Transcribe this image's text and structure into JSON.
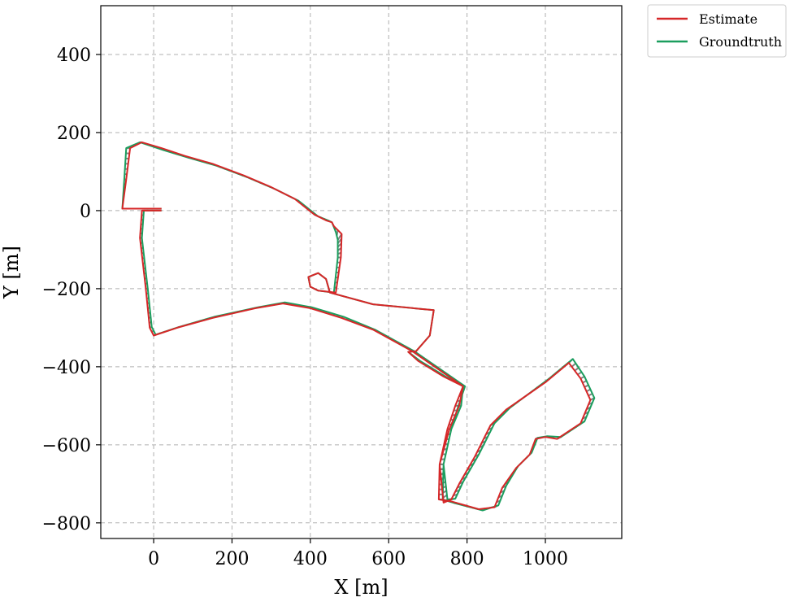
{
  "chart_data": {
    "type": "line",
    "title": "",
    "xlabel": "X [m]",
    "ylabel": "Y [m]",
    "xlim": [
      -135,
      1195
    ],
    "ylim": [
      -840,
      525
    ],
    "xticks": [
      0,
      200,
      400,
      600,
      800,
      1000
    ],
    "yticks": [
      400,
      200,
      0,
      -200,
      -400,
      -600,
      -800
    ],
    "xtick_labels": [
      "0",
      "200",
      "400",
      "600",
      "800",
      "1000"
    ],
    "ytick_labels": [
      "400",
      "200",
      "0",
      "−200",
      "−400",
      "−600",
      "−800"
    ],
    "grid": true,
    "legend_position": "outside-top-right",
    "error_color": "#808080",
    "series": [
      {
        "name": "Estimate",
        "color": "#d62728",
        "points": [
          [
            20,
            5
          ],
          [
            -55,
            5
          ],
          [
            -80,
            5
          ],
          [
            -70,
            80
          ],
          [
            -60,
            160
          ],
          [
            -30,
            175
          ],
          [
            20,
            160
          ],
          [
            80,
            140
          ],
          [
            150,
            120
          ],
          [
            230,
            90
          ],
          [
            300,
            60
          ],
          [
            360,
            30
          ],
          [
            410,
            -10
          ],
          [
            440,
            -25
          ],
          [
            455,
            -30
          ],
          [
            460,
            -40
          ],
          [
            480,
            -60
          ],
          [
            478,
            -120
          ],
          [
            465,
            -210
          ],
          [
            420,
            -205
          ],
          [
            400,
            -195
          ],
          [
            395,
            -170
          ],
          [
            420,
            -160
          ],
          [
            440,
            -175
          ],
          [
            450,
            -210
          ],
          [
            560,
            -240
          ],
          [
            715,
            -255
          ],
          [
            705,
            -320
          ],
          [
            670,
            -360
          ],
          [
            650,
            -362
          ],
          [
            675,
            -385
          ],
          [
            740,
            -425
          ],
          [
            790,
            -450
          ],
          [
            780,
            -500
          ],
          [
            755,
            -560
          ],
          [
            730,
            -650
          ],
          [
            728,
            -740
          ],
          [
            760,
            -745
          ],
          [
            830,
            -765
          ],
          [
            870,
            -760
          ],
          [
            890,
            -710
          ],
          [
            925,
            -660
          ],
          [
            960,
            -625
          ],
          [
            975,
            -585
          ],
          [
            1000,
            -580
          ],
          [
            1030,
            -585
          ],
          [
            1090,
            -545
          ],
          [
            1115,
            -485
          ],
          [
            1090,
            -430
          ],
          [
            1060,
            -390
          ],
          [
            1000,
            -440
          ],
          [
            900,
            -510
          ],
          [
            860,
            -550
          ],
          [
            820,
            -630
          ],
          [
            780,
            -700
          ],
          [
            760,
            -740
          ],
          [
            740,
            -748
          ],
          [
            730,
            -650
          ],
          [
            750,
            -560
          ],
          [
            770,
            -500
          ],
          [
            790,
            -450
          ],
          [
            660,
            -360
          ],
          [
            560,
            -305
          ],
          [
            480,
            -275
          ],
          [
            400,
            -250
          ],
          [
            330,
            -238
          ],
          [
            260,
            -250
          ],
          [
            150,
            -275
          ],
          [
            60,
            -300
          ],
          [
            0,
            -320
          ],
          [
            -10,
            -300
          ],
          [
            -20,
            -200
          ],
          [
            -35,
            -70
          ],
          [
            -30,
            0
          ],
          [
            20,
            0
          ]
        ]
      },
      {
        "name": "Groundtruth",
        "color": "#1b9e5e",
        "points": [
          [
            20,
            5
          ],
          [
            -55,
            5
          ],
          [
            -80,
            5
          ],
          [
            -75,
            80
          ],
          [
            -70,
            160
          ],
          [
            -35,
            175
          ],
          [
            25,
            155
          ],
          [
            90,
            135
          ],
          [
            160,
            115
          ],
          [
            240,
            85
          ],
          [
            310,
            55
          ],
          [
            370,
            25
          ],
          [
            420,
            -15
          ],
          [
            445,
            -25
          ],
          [
            455,
            -30
          ],
          [
            465,
            -55
          ],
          [
            470,
            -75
          ],
          [
            470,
            -120
          ],
          [
            460,
            -210
          ],
          [
            420,
            -205
          ],
          [
            400,
            -195
          ],
          [
            395,
            -170
          ],
          [
            420,
            -160
          ],
          [
            440,
            -175
          ],
          [
            450,
            -210
          ],
          [
            560,
            -240
          ],
          [
            715,
            -255
          ],
          [
            705,
            -320
          ],
          [
            670,
            -360
          ],
          [
            650,
            -362
          ],
          [
            680,
            -385
          ],
          [
            745,
            -425
          ],
          [
            790,
            -450
          ],
          [
            785,
            -500
          ],
          [
            760,
            -560
          ],
          [
            740,
            -650
          ],
          [
            738,
            -740
          ],
          [
            770,
            -750
          ],
          [
            840,
            -768
          ],
          [
            880,
            -755
          ],
          [
            900,
            -705
          ],
          [
            930,
            -655
          ],
          [
            965,
            -620
          ],
          [
            980,
            -582
          ],
          [
            1005,
            -578
          ],
          [
            1040,
            -580
          ],
          [
            1100,
            -540
          ],
          [
            1125,
            -480
          ],
          [
            1100,
            -425
          ],
          [
            1070,
            -380
          ],
          [
            1010,
            -430
          ],
          [
            910,
            -505
          ],
          [
            870,
            -545
          ],
          [
            830,
            -625
          ],
          [
            790,
            -695
          ],
          [
            770,
            -738
          ],
          [
            750,
            -740
          ],
          [
            740,
            -650
          ],
          [
            760,
            -560
          ],
          [
            778,
            -500
          ],
          [
            795,
            -450
          ],
          [
            665,
            -360
          ],
          [
            565,
            -305
          ],
          [
            485,
            -272
          ],
          [
            405,
            -248
          ],
          [
            335,
            -235
          ],
          [
            265,
            -248
          ],
          [
            155,
            -272
          ],
          [
            65,
            -298
          ],
          [
            5,
            -318
          ],
          [
            -5,
            -298
          ],
          [
            -15,
            -200
          ],
          [
            -30,
            -70
          ],
          [
            -25,
            0
          ],
          [
            20,
            0
          ]
        ]
      }
    ]
  }
}
